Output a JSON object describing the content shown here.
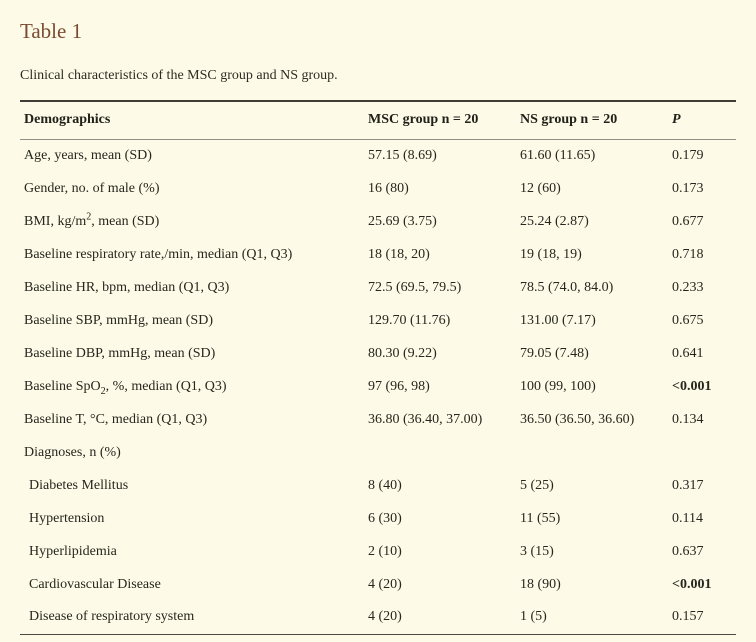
{
  "page": {
    "background_color": "#fdfbe7",
    "title_color": "#7a4b32",
    "text_color": "#26261e"
  },
  "table": {
    "title": "Table 1",
    "caption": "Clinical characteristics of the MSC group and NS group.",
    "columns": [
      "Demographics",
      "MSC group n = 20",
      "NS group n = 20",
      "P"
    ],
    "rows": [
      {
        "label": [
          {
            "t": "Age, years, mean (SD)"
          }
        ],
        "msc": "57.15 (8.69)",
        "ns": "61.60 (11.65)",
        "p": "0.179"
      },
      {
        "label": [
          {
            "t": "Gender, no. of male (%)"
          }
        ],
        "msc": "16 (80)",
        "ns": "12 (60)",
        "p": "0.173"
      },
      {
        "label": [
          {
            "t": "BMI, kg/m"
          },
          {
            "t": "2",
            "fmt": "sup"
          },
          {
            "t": ", mean (SD)"
          }
        ],
        "msc": "25.69 (3.75)",
        "ns": "25.24 (2.87)",
        "p": "0.677"
      },
      {
        "label": [
          {
            "t": "Baseline respiratory rate,/min, median (Q1, Q3)"
          }
        ],
        "msc": "18 (18, 20)",
        "ns": "19 (18, 19)",
        "p": "0.718"
      },
      {
        "label": [
          {
            "t": "Baseline HR, bpm, median (Q1, Q3)"
          }
        ],
        "msc": "72.5 (69.5, 79.5)",
        "ns": "78.5 (74.0, 84.0)",
        "p": "0.233"
      },
      {
        "label": [
          {
            "t": "Baseline SBP, mmHg, mean (SD)"
          }
        ],
        "msc": "129.70 (11.76)",
        "ns": "131.00 (7.17)",
        "p": "0.675"
      },
      {
        "label": [
          {
            "t": "Baseline DBP, mmHg, mean (SD)"
          }
        ],
        "msc": "80.30 (9.22)",
        "ns": "79.05 (7.48)",
        "p": "0.641"
      },
      {
        "label": [
          {
            "t": "Baseline SpO"
          },
          {
            "t": "2",
            "fmt": "sub"
          },
          {
            "t": ", %, median (Q1, Q3)"
          }
        ],
        "msc": "97 (96, 98)",
        "ns": "100 (99, 100)",
        "p": "<0.001",
        "p_bold": true
      },
      {
        "label": [
          {
            "t": "Baseline T, °C, median (Q1, Q3)"
          }
        ],
        "msc": "36.80 (36.40, 37.00)",
        "ns": "36.50 (36.50, 36.60)",
        "p": "0.134"
      },
      {
        "label": [
          {
            "t": "Diagnoses, n (%)"
          }
        ],
        "msc": "",
        "ns": "",
        "p": ""
      },
      {
        "label": [
          {
            "t": "Diabetes Mellitus"
          }
        ],
        "indent": true,
        "msc": "8 (40)",
        "ns": "5 (25)",
        "p": "0.317"
      },
      {
        "label": [
          {
            "t": "Hypertension"
          }
        ],
        "indent": true,
        "msc": "6 (30)",
        "ns": "11 (55)",
        "p": "0.114"
      },
      {
        "label": [
          {
            "t": "Hyperlipidemia"
          }
        ],
        "indent": true,
        "msc": "2 (10)",
        "ns": "3 (15)",
        "p": "0.637"
      },
      {
        "label": [
          {
            "t": "Cardiovascular Disease"
          }
        ],
        "indent": true,
        "msc": "4 (20)",
        "ns": "18 (90)",
        "p": "<0.001",
        "p_bold": true
      },
      {
        "label": [
          {
            "t": "Disease of respiratory system"
          }
        ],
        "indent": true,
        "msc": "4 (20)",
        "ns": "1 (5)",
        "p": "0.157"
      }
    ]
  }
}
